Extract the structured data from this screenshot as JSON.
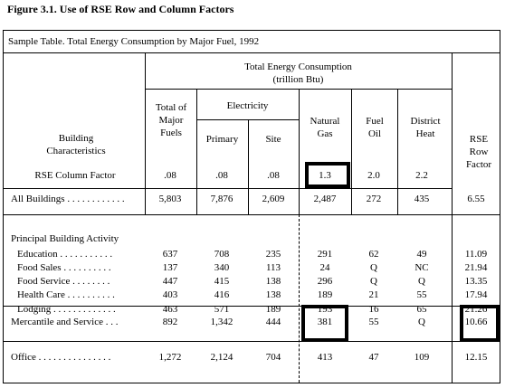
{
  "figure_title": "Figure 3.1.  Use of RSE Row and Column Factors",
  "table_caption": "Sample Table.  Total Energy Consumption by Major Fuel, 1992",
  "headers": {
    "span_title": "Total Energy Consumption",
    "span_unit": "(trillion Btu)",
    "building_characteristics": "Building Characteristics",
    "total": "Total of Major Fuels",
    "electricity": "Electricity",
    "primary": "Primary",
    "site": "Site",
    "natural_gas": "Natural Gas",
    "fuel_oil": "Fuel Oil",
    "district_heat": "District Heat",
    "rse_row_factor": "RSE Row Factor"
  },
  "rse_column": {
    "label": "RSE Column Factor",
    "values": [
      ".08",
      ".08",
      ".08",
      "1.3",
      "2.0",
      "2.2"
    ]
  },
  "rows": [
    {
      "label": "All Buildings . . . . . . . . . . . .",
      "values": [
        "5,803",
        "7,876",
        "2,609",
        "2,487",
        "272",
        "435",
        "6.55"
      ]
    },
    {
      "section": "Principal Building Activity"
    },
    {
      "label": "Education . . . . . . . . . . .",
      "values": [
        "637",
        "708",
        "235",
        "291",
        "62",
        "49",
        "11.09"
      ]
    },
    {
      "label": "Food Sales . . . . . . . . . .",
      "values": [
        "137",
        "340",
        "113",
        "24",
        "Q",
        "NC",
        "21.94"
      ]
    },
    {
      "label": "Food Service  . . . . . . . .",
      "values": [
        "447",
        "415",
        "138",
        "296",
        "Q",
        "Q",
        "13.35"
      ]
    },
    {
      "label": "Health Care . . . . . . . . . .",
      "values": [
        "403",
        "416",
        "138",
        "189",
        "21",
        "55",
        "17.94"
      ]
    },
    {
      "label": "Lodging . . . . . . . . . . . . .",
      "values": [
        "463",
        "571",
        "189",
        "193",
        "16",
        "65",
        "21.26"
      ]
    },
    {
      "label": "Mercantile and Service . . .",
      "values": [
        "892",
        "1,342",
        "444",
        "381",
        "55",
        "Q",
        "10.66"
      ]
    },
    {
      "label": "Office  . . . . . . . . . . . . . . .",
      "values": [
        "1,272",
        "2,124",
        "704",
        "413",
        "47",
        "109",
        "12.15"
      ]
    }
  ]
}
